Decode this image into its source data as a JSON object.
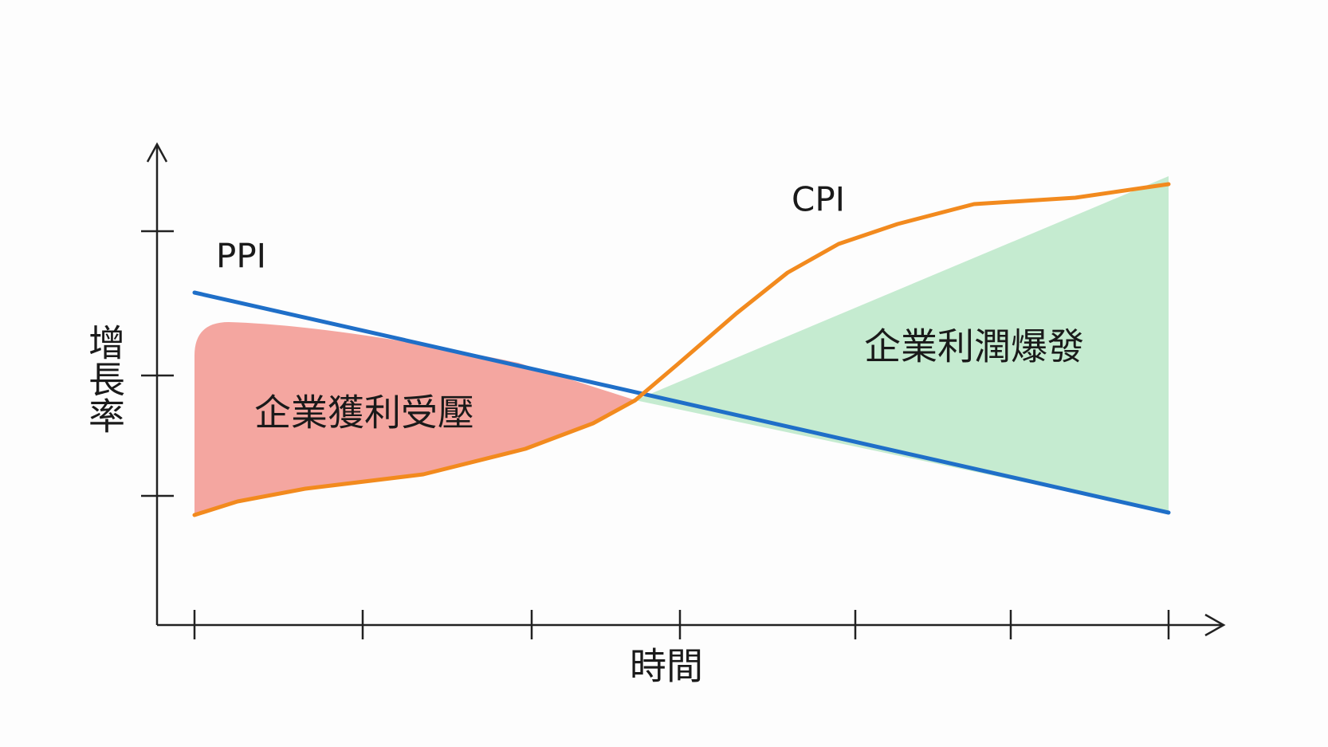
{
  "axes": {
    "y_label": "增長率",
    "x_label": "時間"
  },
  "lines": [
    {
      "label": "PPI"
    },
    {
      "label": "CPI"
    }
  ],
  "regions": [
    {
      "label": "企業獲利受壓"
    },
    {
      "label": "企業利潤爆發"
    }
  ]
}
